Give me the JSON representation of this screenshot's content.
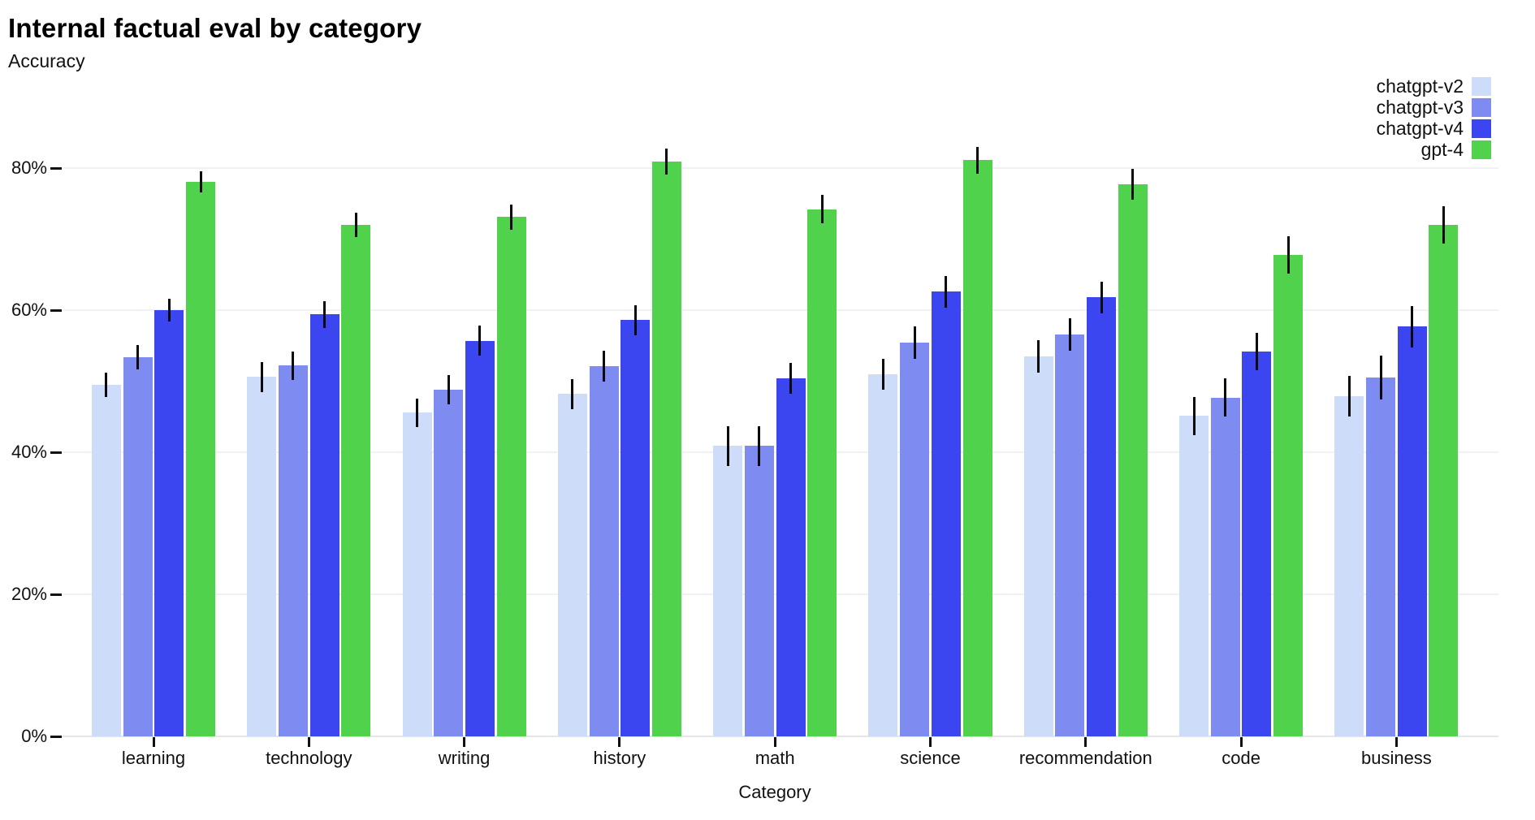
{
  "chart_data": {
    "type": "bar",
    "title": "Internal factual eval by category",
    "subtitle": "Accuracy",
    "xlabel": "Category",
    "ylabel": "Accuracy",
    "categories": [
      "learning",
      "technology",
      "writing",
      "history",
      "math",
      "science",
      "recommendation",
      "code",
      "business"
    ],
    "series": [
      {
        "name": "chatgpt-v2",
        "color": "#cdddf9",
        "values": [
          49.5,
          50.6,
          45.6,
          48.2,
          40.9,
          51.0,
          53.5,
          45.1,
          47.9
        ],
        "errors": [
          1.7,
          2.1,
          2.0,
          2.1,
          2.8,
          2.2,
          2.3,
          2.7,
          2.9
        ]
      },
      {
        "name": "chatgpt-v3",
        "color": "#7e8cf2",
        "values": [
          53.4,
          52.2,
          48.8,
          52.1,
          40.9,
          55.4,
          56.6,
          47.7,
          50.5
        ],
        "errors": [
          1.7,
          2.0,
          2.1,
          2.2,
          2.8,
          2.3,
          2.3,
          2.7,
          3.1
        ]
      },
      {
        "name": "chatgpt-v4",
        "color": "#3b46f0",
        "values": [
          60.0,
          59.4,
          55.7,
          58.6,
          50.4,
          62.6,
          61.8,
          54.2,
          57.7
        ],
        "errors": [
          1.6,
          1.9,
          2.1,
          2.1,
          2.2,
          2.2,
          2.2,
          2.6,
          2.9
        ]
      },
      {
        "name": "gpt-4",
        "color": "#50d24c",
        "values": [
          78.1,
          72.0,
          73.1,
          80.9,
          74.2,
          81.1,
          77.7,
          67.8,
          72.0
        ],
        "errors": [
          1.5,
          1.7,
          1.8,
          1.8,
          2.0,
          1.9,
          2.2,
          2.6,
          2.6
        ]
      }
    ],
    "y_ticks": [
      {
        "label": "0%",
        "value": 0
      },
      {
        "label": "20%",
        "value": 20
      },
      {
        "label": "40%",
        "value": 40
      },
      {
        "label": "60%",
        "value": 60
      },
      {
        "label": "80%",
        "value": 80
      }
    ],
    "ylim": [
      0,
      90
    ],
    "grid": true,
    "error_bars": true,
    "error_bar_color": "#0a0a0a",
    "legend_position": "top-right"
  }
}
